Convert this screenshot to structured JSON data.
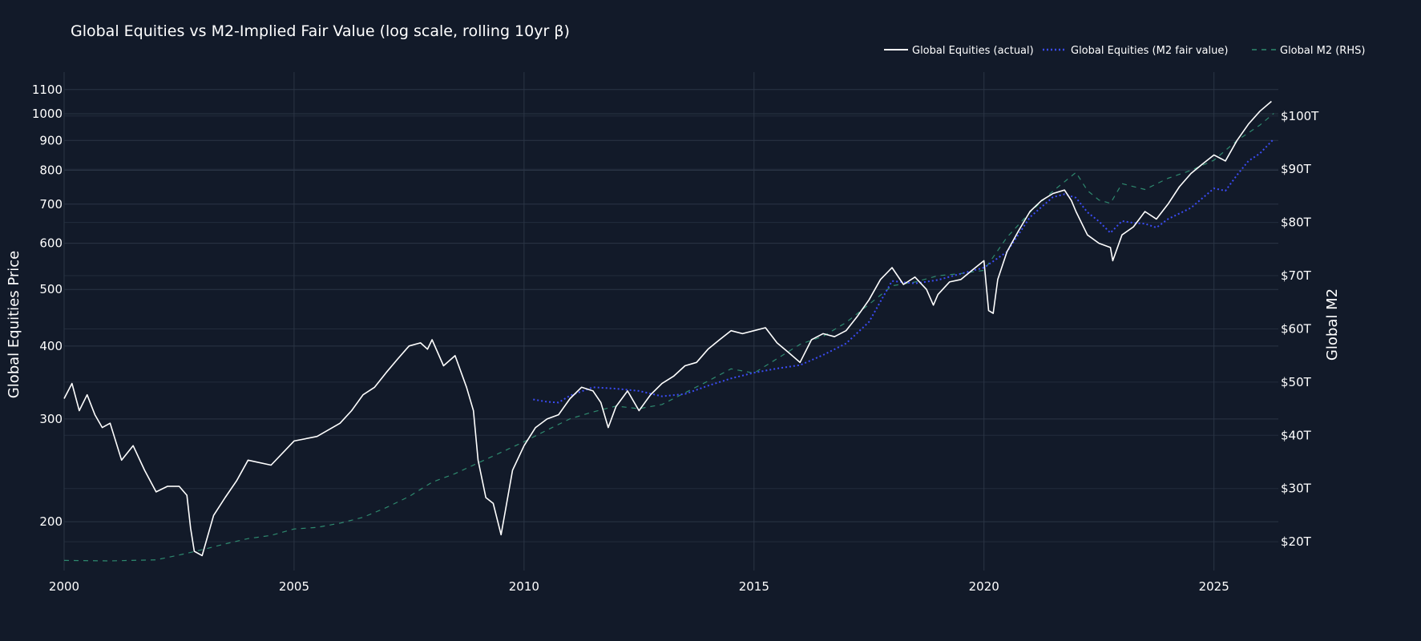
{
  "chart_data": {
    "type": "line",
    "title": "Global Equities vs M2-Implied Fair Value (log scale, rolling 10yr β)",
    "xlabel": "",
    "ylabel": "Global Equities Price",
    "y2label": "Global M2",
    "xlim": [
      2000.0,
      2026.4
    ],
    "x_ticks": [
      2000,
      2005,
      2010,
      2015,
      2020,
      2025
    ],
    "x_tick_labels": [
      "2000",
      "2005",
      "2010",
      "2015",
      "2020",
      "2025"
    ],
    "y_scale": "log",
    "ylim": [
      165,
      1160
    ],
    "y_ticks": [
      200,
      300,
      400,
      500,
      600,
      700,
      800,
      900,
      1000,
      1100
    ],
    "y_tick_labels": [
      "200",
      "300",
      "400",
      "500",
      "600",
      "700",
      "800",
      "900",
      "1000",
      "1100"
    ],
    "y2lim": [
      14.6,
      107.5
    ],
    "y2_ticks": [
      20,
      30,
      40,
      50,
      60,
      70,
      80,
      90,
      100
    ],
    "y2_tick_labels": [
      "$20T",
      "$30T",
      "$40T",
      "$50T",
      "$60T",
      "$70T",
      "$80T",
      "$90T",
      "$100T"
    ],
    "grid": true,
    "legend_position": "top-right",
    "colors": {
      "background": "#121a29",
      "grid": "#2b3545",
      "actual": "#ffffff",
      "fair": "#3b4cf5",
      "m2": "#2e8a6f"
    },
    "series": [
      {
        "name": "Global Equities (actual)",
        "axis": "left",
        "style": "solid",
        "color": "#ffffff",
        "x": [
          2000.0,
          2000.17,
          2000.33,
          2000.5,
          2000.67,
          2000.83,
          2001.0,
          2001.25,
          2001.5,
          2001.75,
          2002.0,
          2002.25,
          2002.5,
          2002.67,
          2002.75,
          2002.83,
          2003.0,
          2003.25,
          2003.5,
          2003.75,
          2004.0,
          2004.5,
          2005.0,
          2005.5,
          2006.0,
          2006.25,
          2006.5,
          2006.75,
          2007.0,
          2007.25,
          2007.5,
          2007.75,
          2007.9,
          2008.0,
          2008.25,
          2008.5,
          2008.75,
          2008.9,
          2009.0,
          2009.17,
          2009.33,
          2009.5,
          2009.75,
          2010.0,
          2010.25,
          2010.5,
          2010.75,
          2011.0,
          2011.25,
          2011.5,
          2011.67,
          2011.83,
          2012.0,
          2012.25,
          2012.5,
          2012.75,
          2013.0,
          2013.25,
          2013.5,
          2013.75,
          2014.0,
          2014.25,
          2014.5,
          2014.75,
          2015.0,
          2015.25,
          2015.5,
          2015.75,
          2016.0,
          2016.25,
          2016.5,
          2016.75,
          2017.0,
          2017.25,
          2017.5,
          2017.75,
          2018.0,
          2018.25,
          2018.5,
          2018.75,
          2018.9,
          2019.0,
          2019.25,
          2019.5,
          2019.75,
          2020.0,
          2020.1,
          2020.2,
          2020.3,
          2020.5,
          2020.75,
          2021.0,
          2021.25,
          2021.5,
          2021.75,
          2021.9,
          2022.0,
          2022.25,
          2022.5,
          2022.75,
          2022.8,
          2023.0,
          2023.25,
          2023.5,
          2023.75,
          2024.0,
          2024.25,
          2024.5,
          2024.75,
          2025.0,
          2025.25,
          2025.5,
          2025.75,
          2026.0,
          2026.25
        ],
        "values": [
          325,
          345,
          310,
          330,
          305,
          290,
          295,
          255,
          270,
          245,
          225,
          230,
          230,
          222,
          195,
          178,
          175,
          205,
          220,
          235,
          255,
          250,
          275,
          280,
          295,
          310,
          330,
          340,
          360,
          380,
          400,
          405,
          395,
          410,
          370,
          385,
          340,
          310,
          255,
          220,
          215,
          190,
          245,
          270,
          290,
          300,
          305,
          325,
          340,
          335,
          320,
          290,
          315,
          335,
          310,
          330,
          345,
          355,
          370,
          375,
          395,
          410,
          425,
          420,
          425,
          430,
          405,
          390,
          375,
          410,
          420,
          415,
          425,
          450,
          480,
          520,
          545,
          510,
          525,
          500,
          470,
          490,
          515,
          520,
          540,
          560,
          460,
          455,
          520,
          580,
          630,
          680,
          710,
          730,
          740,
          710,
          680,
          620,
          600,
          590,
          560,
          620,
          640,
          680,
          660,
          700,
          750,
          790,
          820,
          850,
          830,
          900,
          960,
          1010,
          1050
        ]
      },
      {
        "name": "Global Equities (M2 fair value)",
        "axis": "left",
        "style": "dotted",
        "color": "#3b4cf5",
        "x": [
          2010.2,
          2010.5,
          2010.75,
          2011.0,
          2011.5,
          2012.0,
          2012.5,
          2013.0,
          2013.5,
          2014.0,
          2014.5,
          2015.0,
          2015.5,
          2016.0,
          2016.5,
          2017.0,
          2017.5,
          2018.0,
          2018.5,
          2019.0,
          2019.5,
          2020.0,
          2020.5,
          2021.0,
          2021.5,
          2021.75,
          2022.0,
          2022.25,
          2022.5,
          2022.75,
          2023.0,
          2023.25,
          2023.5,
          2023.75,
          2024.0,
          2024.5,
          2025.0,
          2025.25,
          2025.5,
          2025.75,
          2026.0,
          2026.3
        ],
        "values": [
          324,
          321,
          320,
          329,
          340,
          338,
          335,
          328,
          331,
          342,
          352,
          360,
          366,
          371,
          386,
          404,
          440,
          517,
          512,
          519,
          532,
          545,
          580,
          665,
          720,
          728,
          718,
          678,
          654,
          625,
          655,
          650,
          648,
          638,
          660,
          690,
          745,
          738,
          785,
          830,
          855,
          905
        ]
      },
      {
        "name": "Global M2 (RHS)",
        "axis": "right",
        "style": "dashed",
        "color": "#2e8a6f",
        "x": [
          2000.0,
          2001.0,
          2002.0,
          2002.5,
          2003.0,
          2003.5,
          2004.0,
          2004.5,
          2005.0,
          2005.5,
          2006.0,
          2006.5,
          2007.0,
          2007.5,
          2008.0,
          2008.5,
          2009.0,
          2009.5,
          2010.0,
          2010.5,
          2011.0,
          2011.5,
          2012.0,
          2012.5,
          2013.0,
          2013.5,
          2014.0,
          2014.5,
          2015.0,
          2015.5,
          2016.0,
          2016.5,
          2017.0,
          2017.5,
          2018.0,
          2018.5,
          2019.0,
          2019.5,
          2020.0,
          2020.5,
          2021.0,
          2021.5,
          2022.0,
          2022.25,
          2022.5,
          2022.75,
          2023.0,
          2023.5,
          2024.0,
          2024.5,
          2025.0,
          2025.5,
          2026.0,
          2026.3
        ],
        "values": [
          16.5,
          16.4,
          16.6,
          17.5,
          18.5,
          19.6,
          20.6,
          21.2,
          22.4,
          22.7,
          23.5,
          24.6,
          26.4,
          28.5,
          31.2,
          32.8,
          34.8,
          36.8,
          38.8,
          41.0,
          43.1,
          44.4,
          45.5,
          45.0,
          45.8,
          48.0,
          50.2,
          52.5,
          51.7,
          54.4,
          57.1,
          58.6,
          61.2,
          64.6,
          68.1,
          68.8,
          70.0,
          70.4,
          71.0,
          77.2,
          81.9,
          85.9,
          89.4,
          86.0,
          84.2,
          83.6,
          87.3,
          86.2,
          88.3,
          89.8,
          91.7,
          95.4,
          98.3,
          100.5
        ]
      }
    ]
  }
}
